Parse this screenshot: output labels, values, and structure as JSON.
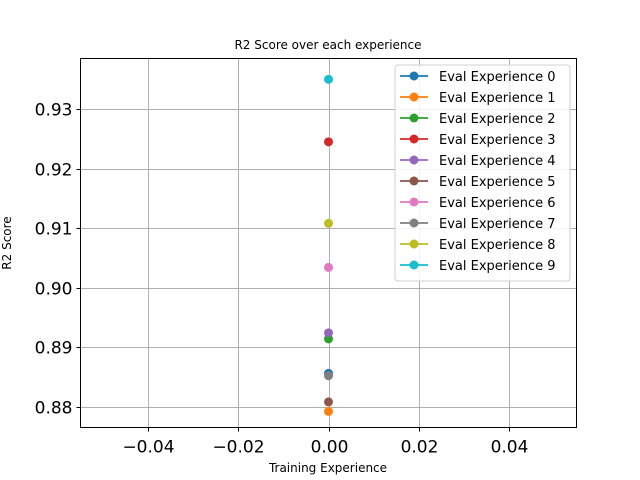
{
  "chart_data": {
    "type": "scatter",
    "title": "R2 Score over each experience",
    "xlabel": "Training Experience",
    "ylabel": "R2 Score",
    "xlim": [
      -0.055,
      0.055
    ],
    "ylim": [
      0.8765,
      0.9385
    ],
    "xticks": [
      -0.04,
      -0.02,
      0.0,
      0.02,
      0.04
    ],
    "xtick_labels": [
      "−0.04",
      "−0.02",
      "0.00",
      "0.02",
      "0.04"
    ],
    "yticks": [
      0.88,
      0.89,
      0.9,
      0.91,
      0.92,
      0.93
    ],
    "ytick_labels": [
      "0.88",
      "0.89",
      "0.90",
      "0.91",
      "0.92",
      "0.93"
    ],
    "grid": true,
    "legend_position": "top-right",
    "series": [
      {
        "name": "Eval Experience 0",
        "color": "#1f77b4",
        "x": [
          0
        ],
        "y": [
          0.8856
        ]
      },
      {
        "name": "Eval Experience 1",
        "color": "#ff7f0e",
        "x": [
          0
        ],
        "y": [
          0.8792
        ]
      },
      {
        "name": "Eval Experience 2",
        "color": "#2ca02c",
        "x": [
          0
        ],
        "y": [
          0.8914
        ]
      },
      {
        "name": "Eval Experience 3",
        "color": "#d62728",
        "x": [
          0
        ],
        "y": [
          0.9245
        ]
      },
      {
        "name": "Eval Experience 4",
        "color": "#9467bd",
        "x": [
          0
        ],
        "y": [
          0.8924
        ]
      },
      {
        "name": "Eval Experience 5",
        "color": "#8c564b",
        "x": [
          0
        ],
        "y": [
          0.8808
        ]
      },
      {
        "name": "Eval Experience 6",
        "color": "#e377c2",
        "x": [
          0
        ],
        "y": [
          0.9034
        ]
      },
      {
        "name": "Eval Experience 7",
        "color": "#7f7f7f",
        "x": [
          0
        ],
        "y": [
          0.8852
        ]
      },
      {
        "name": "Eval Experience 8",
        "color": "#bcbd22",
        "x": [
          0
        ],
        "y": [
          0.9108
        ]
      },
      {
        "name": "Eval Experience 9",
        "color": "#17becf",
        "x": [
          0
        ],
        "y": [
          0.935
        ]
      }
    ]
  }
}
